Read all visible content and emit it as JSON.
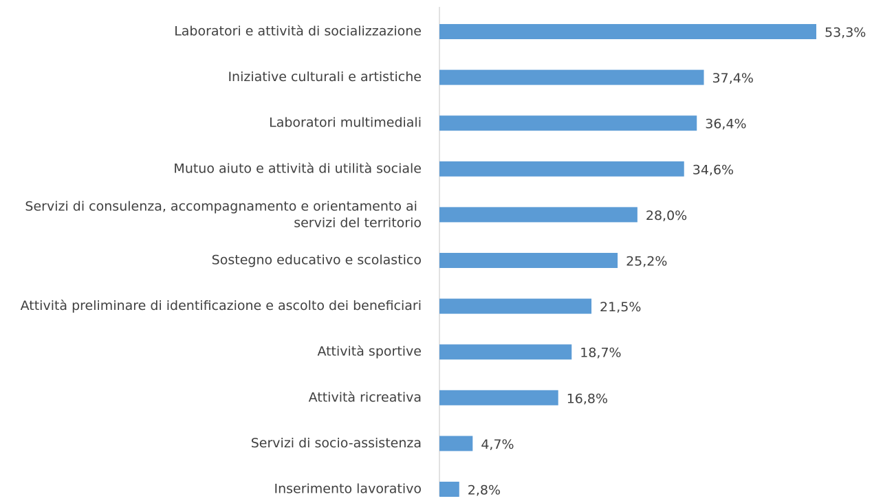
{
  "chart_data": {
    "type": "hbar",
    "categories": [
      "Laboratori e attività di socializzazione",
      "Iniziative culturali e artistiche",
      "Laboratori multimediali",
      "Mutuo aiuto e attività di utilità sociale",
      "Servizi di consulenza, accompagnamento e orientamento ai servizi del territorio",
      "Sostegno educativo e scolastico",
      "Attività preliminare di identificazione e ascolto dei beneficiari",
      "Attività sportive",
      "Attività ricreativa",
      "Servizi di socio-assistenza",
      "Inserimento lavorativo"
    ],
    "values": [
      53.3,
      37.4,
      36.4,
      34.6,
      28.0,
      25.2,
      21.5,
      18.7,
      16.8,
      4.7,
      2.8
    ],
    "value_labels": [
      "53,3%",
      "37,4%",
      "36,4%",
      "34,6%",
      "28,0%",
      "25,2%",
      "21,5%",
      "18,7%",
      "16,8%",
      "4,7%",
      "2,8%"
    ],
    "color": "#5b9bd5"
  }
}
